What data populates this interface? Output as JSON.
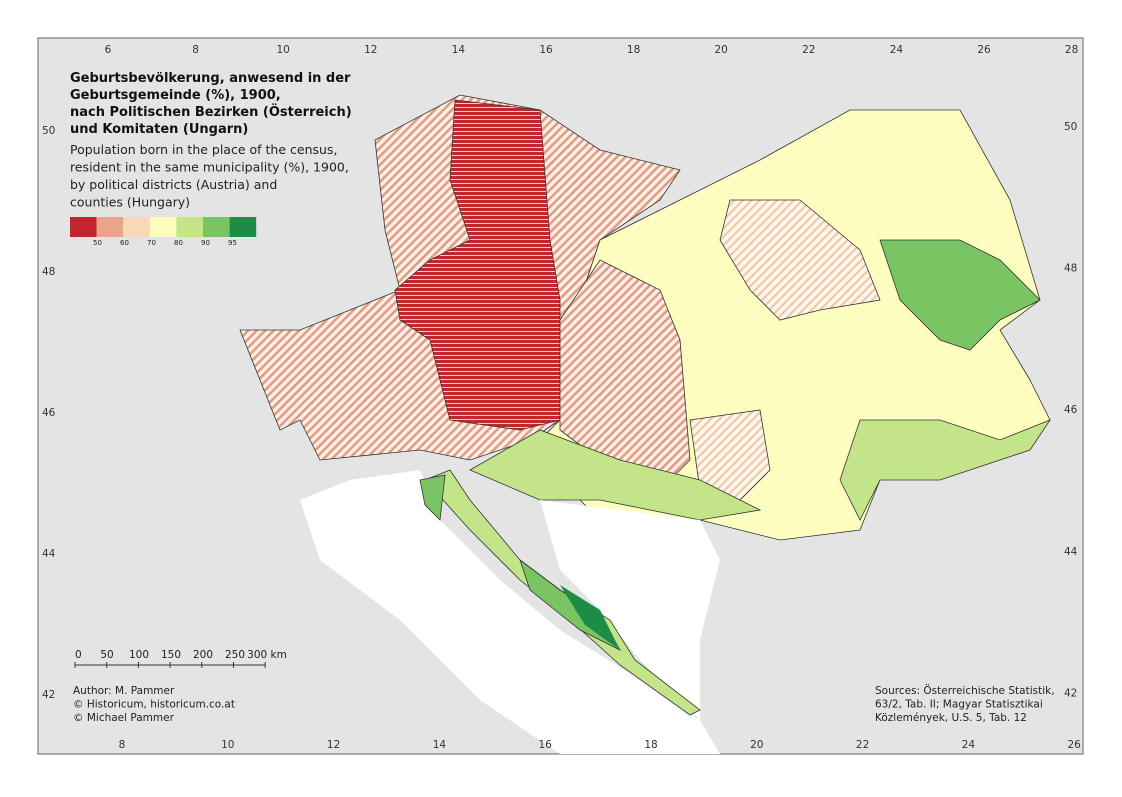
{
  "title": [
    "Geburtsbevölkerung, anwesend in der",
    "Geburtsgemeinde (%), 1900,",
    "nach Politischen Bezirken (Österreich)",
    "und Komitaten (Ungarn)"
  ],
  "subtitle": [
    "Population born in the place of the census,",
    "resident in the same municipality (%), 1900,",
    "by political districts (Austria) and",
    "counties (Hungary)"
  ],
  "legend": {
    "labels": [
      "50",
      "60",
      "70",
      "80",
      "90",
      "95"
    ],
    "colors": [
      "#c0282d",
      "#e8a58c",
      "#f7d9b8",
      "#fdfdc0",
      "#c4e48a",
      "#7bc463",
      "#1e8c45"
    ]
  },
  "graticule": {
    "top": [
      6,
      8,
      10,
      12,
      14,
      16,
      18,
      20,
      22,
      24,
      26,
      28
    ],
    "bottom": [
      8,
      10,
      12,
      14,
      16,
      18,
      20,
      22,
      24,
      26
    ],
    "left": [
      50,
      48,
      46,
      44,
      42
    ],
    "right": [
      50,
      48,
      46,
      44,
      42
    ]
  },
  "scale_bar": [
    "0",
    "50",
    "100",
    "150",
    "200",
    "250",
    "300 km"
  ],
  "author": [
    "Author: M. Pammer",
    "© Historicum, historicum.co.at",
    "© Michael Pammer"
  ],
  "sources": [
    "Sources: Österreichische Statistik,",
    "63/2, Tab. II; Magyar Statisztikai",
    "Közlemények, U.S. 5, Tab. 12"
  ]
}
